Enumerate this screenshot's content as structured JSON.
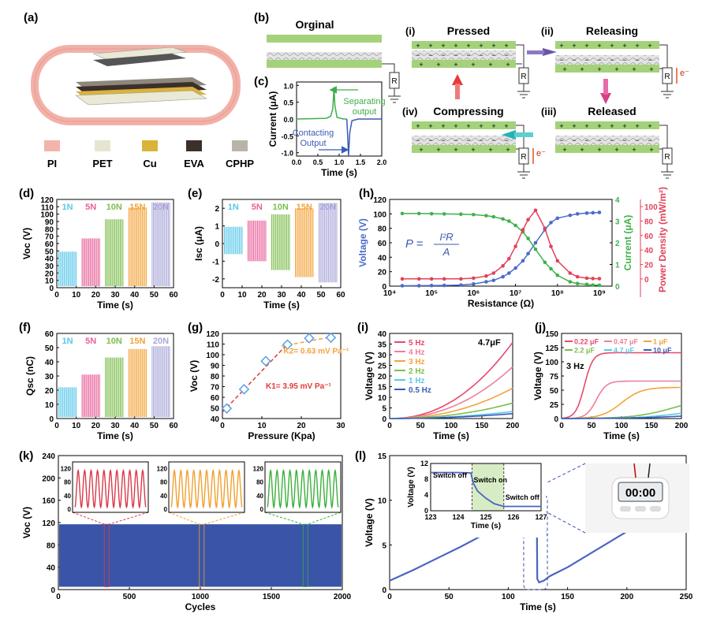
{
  "panels": {
    "a": {
      "letter": "(a)",
      "legend": [
        {
          "label": "PI",
          "color": "#f4b3ab"
        },
        {
          "label": "PET",
          "color": "#e6e6d0"
        },
        {
          "label": "Cu",
          "color": "#d9b33a"
        },
        {
          "label": "EVA",
          "color": "#3b302b"
        },
        {
          "label": "CPHP",
          "color": "#b9b4a8"
        }
      ]
    },
    "b": {
      "letter": "(b)",
      "original": "Orginal",
      "steps": [
        {
          "num": "(i)",
          "label": "Pressed"
        },
        {
          "num": "(ii)",
          "label": "Releasing"
        },
        {
          "num": "(iii)",
          "label": "Released"
        },
        {
          "num": "(iv)",
          "label": "Compressing"
        }
      ],
      "resistor": "R",
      "electron": "e⁻"
    },
    "c": {
      "letter": "(c)",
      "ylabel": "Current (μA)",
      "xlabel": "Time (s)",
      "sep1": "Separating",
      "sep2": "output",
      "con1": "Contacting",
      "con2": "Output"
    },
    "d": {
      "letter": "(d)"
    },
    "e": {
      "letter": "(e)"
    },
    "f": {
      "letter": "(f)"
    },
    "g": {
      "letter": "(g)",
      "k1": "K1= 3.95 mV Pa⁻¹",
      "k2": "K2= 0.63 mV Pa⁻¹"
    },
    "h": {
      "letter": "(h)",
      "formula_p": "P =",
      "formula_num": "I²R",
      "formula_den": "A"
    },
    "i": {
      "letter": "(i)",
      "note": "4.7μF"
    },
    "j": {
      "letter": "(j)",
      "note": "3 Hz"
    },
    "k": {
      "letter": "(k)"
    },
    "l": {
      "letter": "(l)",
      "switch_off": "Switch off",
      "switch_on": "Switch on",
      "switch_off2": "Switch off",
      "clock": "00:00"
    }
  },
  "chart_data": [
    {
      "id": "c",
      "type": "line",
      "xlabel": "Time (s)",
      "ylabel": "Current (μA)",
      "xlim": [
        0,
        2.0
      ],
      "ylim": [
        -1.1,
        1.1
      ],
      "xticks": [
        0.0,
        0.5,
        1.0,
        1.5,
        2.0
      ],
      "yticks": [
        1.0,
        0.5,
        0.0,
        -0.5,
        -1.0
      ],
      "xtick_labels": [
        "0.0",
        "0.5",
        "1.0",
        "1.5",
        "2.0"
      ],
      "ytick_labels": [
        "1.0",
        "0.5",
        "0.0",
        "-0.5",
        "-1.0"
      ],
      "series": [
        {
          "color": "#3fae49",
          "x": [
            0,
            0.7,
            0.8,
            0.85,
            0.88,
            0.9,
            0.95,
            1.1,
            1.18
          ],
          "y": [
            0,
            0.02,
            0.08,
            0.3,
            0.95,
            0.4,
            0.05,
            0,
            0
          ]
        },
        {
          "color": "#3b5bb5",
          "x": [
            1.18,
            1.2,
            1.22,
            1.25,
            1.3,
            1.45,
            2.0
          ],
          "y": [
            0,
            -0.5,
            -1.1,
            -0.4,
            -0.05,
            0,
            0
          ]
        }
      ]
    },
    {
      "id": "d",
      "type": "bar",
      "xlabel": "Time (s)",
      "ylabel": "Voc (V)",
      "xlim": [
        0,
        60
      ],
      "ylim": [
        0,
        120
      ],
      "xticks": [
        0,
        10,
        20,
        30,
        40,
        50,
        60
      ],
      "yticks": [
        0,
        10,
        20,
        30,
        40,
        50,
        60,
        70,
        80,
        90,
        100,
        110,
        120
      ],
      "xtick_labels": [
        "0",
        "10",
        "20",
        "30",
        "40",
        "50",
        "60"
      ],
      "ytick_labels": [
        "0",
        "10",
        "20",
        "30",
        "40",
        "50",
        "60",
        "70",
        "80",
        "90",
        "100",
        "110",
        "120"
      ],
      "series": [
        {
          "name": "1N",
          "color": "#5bc8e8",
          "x0": 1,
          "x1": 10,
          "lo": 2,
          "hi": 49
        },
        {
          "name": "5N",
          "color": "#e8619a",
          "x0": 13,
          "x1": 22,
          "lo": 2,
          "hi": 67
        },
        {
          "name": "10N",
          "color": "#7dbe4d",
          "x0": 25,
          "x1": 34,
          "lo": 2,
          "hi": 93
        },
        {
          "name": "15N",
          "color": "#f3a33a",
          "x0": 37,
          "x1": 46,
          "lo": 2,
          "hi": 109
        },
        {
          "name": "20N",
          "color": "#a9a6d9",
          "x0": 49,
          "x1": 58,
          "lo": 2,
          "hi": 116
        }
      ]
    },
    {
      "id": "e",
      "type": "bar",
      "xlabel": "Time (s)",
      "ylabel": "Isc (μA)",
      "xlim": [
        0,
        60
      ],
      "ylim": [
        -2.5,
        2.5
      ],
      "xticks": [
        0,
        10,
        20,
        30,
        40,
        50,
        60
      ],
      "yticks": [
        2,
        1,
        0,
        -1,
        -2
      ],
      "xtick_labels": [
        "0",
        "10",
        "20",
        "30",
        "40",
        "50",
        "60"
      ],
      "ytick_labels": [
        "2",
        "1",
        "0",
        "-1",
        "-2"
      ],
      "series": [
        {
          "name": "1N",
          "color": "#5bc8e8",
          "x0": 1,
          "x1": 10,
          "lo": -0.6,
          "hi": 0.95
        },
        {
          "name": "5N",
          "color": "#e8619a",
          "x0": 13,
          "x1": 22,
          "lo": -1.0,
          "hi": 1.3
        },
        {
          "name": "10N",
          "color": "#7dbe4d",
          "x0": 25,
          "x1": 34,
          "lo": -1.5,
          "hi": 1.65
        },
        {
          "name": "15N",
          "color": "#f3a33a",
          "x0": 37,
          "x1": 46,
          "lo": -1.9,
          "hi": 2.0
        },
        {
          "name": "20N",
          "color": "#a9a6d9",
          "x0": 49,
          "x1": 58,
          "lo": -2.2,
          "hi": 2.3
        }
      ]
    },
    {
      "id": "f",
      "type": "bar",
      "xlabel": "Time (s)",
      "ylabel": "Qsc (nC)",
      "xlim": [
        0,
        60
      ],
      "ylim": [
        0,
        60
      ],
      "xticks": [
        0,
        10,
        20,
        30,
        40,
        50,
        60
      ],
      "yticks": [
        0,
        10,
        20,
        30,
        40,
        50,
        60
      ],
      "xtick_labels": [
        "0",
        "10",
        "20",
        "30",
        "40",
        "50",
        "60"
      ],
      "ytick_labels": [
        "0",
        "10",
        "20",
        "30",
        "40",
        "50",
        "60"
      ],
      "series": [
        {
          "name": "1N",
          "color": "#5bc8e8",
          "x0": 1,
          "x1": 10,
          "lo": 1,
          "hi": 22
        },
        {
          "name": "5N",
          "color": "#e8619a",
          "x0": 13,
          "x1": 22,
          "lo": 1,
          "hi": 31
        },
        {
          "name": "10N",
          "color": "#7dbe4d",
          "x0": 25,
          "x1": 34,
          "lo": 1,
          "hi": 43
        },
        {
          "name": "15N",
          "color": "#f3a33a",
          "x0": 37,
          "x1": 46,
          "lo": 1,
          "hi": 49
        },
        {
          "name": "20N",
          "color": "#a9a6d9",
          "x0": 49,
          "x1": 58,
          "lo": 1,
          "hi": 51
        }
      ]
    },
    {
      "id": "g",
      "type": "scatter",
      "xlabel": "Pressure (Kpa)",
      "ylabel": "Voc (V)",
      "xlim": [
        0,
        30
      ],
      "ylim": [
        40,
        120
      ],
      "xticks": [
        0,
        10,
        20,
        30
      ],
      "yticks": [
        40,
        50,
        60,
        70,
        80,
        90,
        100,
        110,
        120
      ],
      "xtick_labels": [
        "0",
        "10",
        "20",
        "30"
      ],
      "ytick_labels": [
        "40",
        "50",
        "60",
        "70",
        "80",
        "90",
        "100",
        "110",
        "120"
      ],
      "points": {
        "x": [
          1.1,
          5.5,
          11,
          16.5,
          22,
          27.5
        ],
        "y": [
          49.5,
          67.5,
          94,
          109.5,
          115.5,
          116
        ]
      },
      "fit1": {
        "x": [
          0,
          17
        ],
        "y": [
          46,
          112
        ]
      },
      "fit2": {
        "x": [
          15,
          28
        ],
        "y": [
          108,
          117
        ]
      }
    },
    {
      "id": "h",
      "type": "line",
      "xlabel": "Resistance (Ω)",
      "ylabel": "Voltage (V)",
      "ylabel2": "Current (μA)",
      "ylabel3": "Power Density (mW/m²)",
      "xscale": "log",
      "xlim": [
        10000,
        2000000000
      ],
      "ylim": [
        0,
        120
      ],
      "y2lim": [
        0,
        4
      ],
      "y3lim": [
        -10,
        110
      ],
      "xticks": [
        10000,
        100000,
        1000000,
        10000000,
        100000000,
        1000000000
      ],
      "xtick_labels": [
        "10⁴",
        "10⁵",
        "10⁶",
        "10⁷",
        "10⁸",
        "10⁹"
      ],
      "yticks": [
        0,
        20,
        40,
        60,
        80,
        100,
        120
      ],
      "ytick_labels": [
        "0",
        "20",
        "40",
        "60",
        "80",
        "100",
        "120"
      ],
      "y2ticks": [
        0,
        1,
        2,
        3,
        4
      ],
      "y2tick_labels": [
        "0",
        "1",
        "2",
        "3",
        "4"
      ],
      "y3ticks": [
        0,
        20,
        40,
        60,
        80,
        100
      ],
      "y3tick_labels": [
        "0",
        "20",
        "40",
        "60",
        "80",
        "100"
      ],
      "x": [
        20000,
        50000,
        100000,
        200000,
        500000,
        1000000,
        2000000,
        3000000,
        5000000,
        7000000,
        10000000,
        15000000,
        20000000,
        30000000,
        50000000,
        70000000,
        100000000,
        200000000,
        300000000,
        500000000,
        700000000,
        1000000000
      ],
      "voltage": [
        0.5,
        0.6,
        0.8,
        1,
        1.5,
        3,
        6,
        8,
        13,
        18,
        25,
        35,
        45,
        60,
        78,
        88,
        94,
        98,
        100,
        101,
        101.5,
        102
      ],
      "current": [
        3.35,
        3.35,
        3.34,
        3.33,
        3.32,
        3.3,
        3.25,
        3.2,
        3.1,
        3.0,
        2.8,
        2.5,
        2.2,
        1.7,
        1.1,
        0.8,
        0.5,
        0.2,
        0.12,
        0.08,
        0.05,
        0.04
      ],
      "power": [
        0,
        0,
        0,
        0,
        0,
        1,
        4,
        8,
        18,
        28,
        45,
        68,
        82,
        95,
        70,
        45,
        25,
        8,
        3,
        1,
        0.5,
        0.3
      ],
      "colors": {
        "voltage": "#4a6bc9",
        "current": "#3fb14a",
        "power": "#e2425a"
      }
    },
    {
      "id": "i",
      "type": "line",
      "xlabel": "Time (s)",
      "ylabel": "Voltage (V)",
      "xlim": [
        0,
        200
      ],
      "ylim": [
        0,
        40
      ],
      "xticks": [
        0,
        50,
        100,
        150,
        200
      ],
      "yticks": [
        0,
        5,
        10,
        15,
        20,
        25,
        30,
        35,
        40
      ],
      "xtick_labels": [
        "0",
        "50",
        "100",
        "150",
        "200"
      ],
      "ytick_labels": [
        "0",
        "5",
        "10",
        "15",
        "20",
        "25",
        "30",
        "35",
        "40"
      ],
      "series": [
        {
          "name": "5 Hz",
          "color": "#e8496b",
          "end": 35.5
        },
        {
          "name": "4 Hz",
          "color": "#ec7f9c",
          "end": 24
        },
        {
          "name": "3 Hz",
          "color": "#f3a33a",
          "end": 14
        },
        {
          "name": "2 Hz",
          "color": "#7dbe4d",
          "end": 7
        },
        {
          "name": "1 Hz",
          "color": "#5bc8e8",
          "end": 3
        },
        {
          "name": "0.5 Hz",
          "color": "#3b5bb5",
          "end": 2
        }
      ]
    },
    {
      "id": "j",
      "type": "line",
      "xlabel": "Time (s)",
      "ylabel": "Voltage (V)",
      "xlim": [
        0,
        200
      ],
      "ylim": [
        0,
        150
      ],
      "xticks": [
        0,
        50,
        100,
        150,
        200
      ],
      "yticks": [
        0,
        25,
        50,
        75,
        100,
        125,
        150
      ],
      "xtick_labels": [
        "0",
        "50",
        "100",
        "150",
        "200"
      ],
      "ytick_labels": [
        "0",
        "25",
        "50",
        "75",
        "100",
        "125",
        "150"
      ],
      "series": [
        {
          "name": "0.22 μF",
          "color": "#e8496b",
          "sat": 116,
          "t50": 38,
          "k": 0.14
        },
        {
          "name": "0.47 μF",
          "color": "#ec7f9c",
          "sat": 66,
          "t50": 58,
          "k": 0.12
        },
        {
          "name": "1 μF",
          "color": "#f3a33a",
          "sat": 55,
          "t50": 100,
          "k": 0.06
        },
        {
          "name": "2.2 μF",
          "color": "#7dbe4d",
          "sat": 40,
          "t50": 190,
          "k": 0.03
        },
        {
          "name": "4.7 μF",
          "color": "#5bc8e8",
          "sat": 25,
          "t50": 220,
          "k": 0.025
        },
        {
          "name": "10 μF",
          "color": "#3b5bb5",
          "sat": 12,
          "t50": 230,
          "k": 0.02
        }
      ]
    },
    {
      "id": "k",
      "type": "area",
      "xlabel": "Cycles",
      "ylabel": "Voc (V)",
      "xlim": [
        0,
        2000
      ],
      "ylim": [
        0,
        240
      ],
      "xticks": [
        0,
        500,
        1000,
        1500,
        2000
      ],
      "yticks": [
        0,
        40,
        80,
        120,
        160,
        200,
        240
      ],
      "xtick_labels": [
        "0",
        "500",
        "1000",
        "1500",
        "2000"
      ],
      "ytick_labels": [
        "0",
        "40",
        "80",
        "120",
        "160",
        "200",
        "240"
      ],
      "band": {
        "lo": 5,
        "hi": 117,
        "color": "#3a55a8"
      },
      "insets": [
        {
          "color": "#d93a4a",
          "at": 340,
          "yticks": [
            0,
            40,
            80,
            120
          ],
          "ytick_labels": [
            "0",
            "40",
            "80",
            "120"
          ]
        },
        {
          "color": "#f0a030",
          "at": 1010,
          "yticks": [
            0,
            40,
            80,
            120
          ],
          "ytick_labels": [
            "0",
            "40",
            "80",
            "120"
          ]
        },
        {
          "color": "#3caf3c",
          "at": 1740,
          "yticks": [
            0,
            40,
            80,
            120
          ],
          "ytick_labels": [
            "0",
            "40",
            "80",
            "120"
          ]
        }
      ]
    },
    {
      "id": "l",
      "type": "line",
      "xlabel": "Time (s)",
      "ylabel": "Voltage (V)",
      "xlim": [
        0,
        250
      ],
      "ylim": [
        0,
        15
      ],
      "xticks": [
        0,
        50,
        100,
        150,
        200,
        250
      ],
      "yticks": [
        0,
        5,
        10,
        15
      ],
      "xtick_labels": [
        "0",
        "50",
        "100",
        "150",
        "200",
        "250"
      ],
      "ytick_labels": [
        "0",
        "5",
        "10",
        "15"
      ],
      "x": [
        0,
        20,
        40,
        60,
        80,
        100,
        120,
        124,
        124.5,
        126,
        130,
        135,
        150,
        200,
        245
      ],
      "y": [
        1,
        2.2,
        3.5,
        4.8,
        6.2,
        7.8,
        9.5,
        9.7,
        1.2,
        0.8,
        1.0,
        1.5,
        2.5,
        6.5,
        10
      ],
      "color": "#4a64c2",
      "inset": {
        "xlabel": "Time (s)",
        "ylabel": "Voltage (V)",
        "xlim": [
          123,
          127
        ],
        "ylim": [
          0,
          12
        ],
        "xticks": [
          123,
          124,
          125,
          126,
          127
        ],
        "yticks": [
          0,
          4,
          8,
          12
        ],
        "xtick_labels": [
          "123",
          "124",
          "125",
          "126",
          "127"
        ],
        "ytick_labels": [
          "0",
          "4",
          "8",
          "12"
        ],
        "shade": [
          124.5,
          125.65
        ],
        "x": [
          123,
          124,
          124.45,
          124.55,
          124.7,
          125.0,
          125.3,
          125.6,
          125.7,
          127
        ],
        "y": [
          9.7,
          9.7,
          9.6,
          7.0,
          5.0,
          3.2,
          1.8,
          1.2,
          1.1,
          1.1
        ]
      }
    }
  ]
}
